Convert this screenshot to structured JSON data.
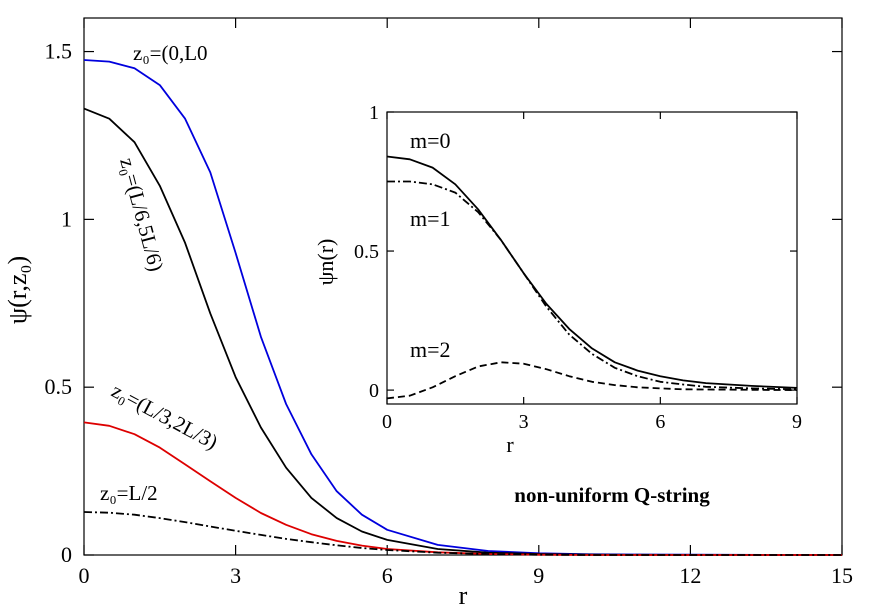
{
  "chart_data": [
    {
      "type": "line",
      "title": "",
      "xlabel": "r",
      "ylabel": "ψ(r,z₀)",
      "xlim": [
        0,
        15
      ],
      "ylim": [
        0,
        1.6
      ],
      "xticks": [
        0,
        3,
        6,
        9,
        12,
        15
      ],
      "xtick_labels": [
        "0",
        "3",
        "6",
        "9",
        "12",
        "15"
      ],
      "yticks": [
        0,
        0.5,
        1,
        1.5
      ],
      "ytick_labels": [
        "0",
        "0.5",
        "1",
        "1.5"
      ],
      "grid": false,
      "annotation": "non-uniform Q-string",
      "series": [
        {
          "label": "z₀=(0,L0",
          "color": "#0000dd",
          "dash": "solid",
          "x": [
            0,
            0.5,
            1,
            1.5,
            2,
            2.5,
            3,
            3.5,
            4,
            4.5,
            5,
            5.5,
            6,
            7,
            8,
            9,
            10,
            12,
            15
          ],
          "y": [
            1.475,
            1.47,
            1.45,
            1.4,
            1.3,
            1.14,
            0.9,
            0.65,
            0.45,
            0.3,
            0.19,
            0.12,
            0.075,
            0.03,
            0.012,
            0.005,
            0.002,
            0.001,
            0
          ]
        },
        {
          "label": "z₀=(L/6,5L/6)",
          "color": "#000000",
          "dash": "solid",
          "x": [
            0,
            0.5,
            1,
            1.5,
            2,
            2.5,
            3,
            3.5,
            4,
            4.5,
            5,
            5.5,
            6,
            7,
            8,
            9,
            10,
            12,
            15
          ],
          "y": [
            1.33,
            1.3,
            1.23,
            1.1,
            0.93,
            0.72,
            0.53,
            0.38,
            0.26,
            0.17,
            0.11,
            0.07,
            0.045,
            0.018,
            0.007,
            0.003,
            0.001,
            0,
            0
          ]
        },
        {
          "label": "z₀=(L/3,2L/3)",
          "color": "#dd0000",
          "dash": "solid",
          "x": [
            0,
            0.5,
            1,
            1.5,
            2,
            2.5,
            3,
            3.5,
            4,
            4.5,
            5,
            5.5,
            6,
            7,
            8,
            9,
            10,
            12,
            15
          ],
          "y": [
            0.395,
            0.385,
            0.36,
            0.32,
            0.27,
            0.22,
            0.17,
            0.125,
            0.09,
            0.062,
            0.042,
            0.028,
            0.018,
            0.008,
            0.003,
            0.001,
            0,
            0,
            0
          ]
        },
        {
          "label": "z₀=L/2",
          "color": "#000000",
          "dash": "dashdot",
          "x": [
            0,
            0.5,
            1,
            1.5,
            2,
            2.5,
            3,
            3.5,
            4,
            4.5,
            5,
            5.5,
            6,
            7,
            8,
            9,
            10,
            12,
            15
          ],
          "y": [
            0.128,
            0.126,
            0.12,
            0.11,
            0.098,
            0.085,
            0.072,
            0.06,
            0.048,
            0.038,
            0.029,
            0.021,
            0.015,
            0.007,
            0.003,
            0.001,
            0,
            0,
            0
          ]
        }
      ]
    },
    {
      "type": "line",
      "title": "",
      "xlabel": "r",
      "ylabel": "ψn(r)",
      "xlim": [
        0,
        9
      ],
      "ylim": [
        -0.05,
        1
      ],
      "xticks": [
        0,
        3,
        6,
        9
      ],
      "xtick_labels": [
        "0",
        "3",
        "6",
        "9"
      ],
      "yticks": [
        0,
        0.5,
        1
      ],
      "ytick_labels": [
        "0",
        "0.5",
        "1"
      ],
      "grid": false,
      "series": [
        {
          "label": "m=0",
          "color": "#000000",
          "dash": "solid",
          "x": [
            0,
            0.5,
            1,
            1.5,
            2,
            2.5,
            3,
            3.5,
            4,
            4.5,
            5,
            5.5,
            6,
            6.5,
            7,
            8,
            9
          ],
          "y": [
            0.84,
            0.83,
            0.8,
            0.74,
            0.65,
            0.54,
            0.42,
            0.31,
            0.22,
            0.15,
            0.1,
            0.07,
            0.05,
            0.035,
            0.025,
            0.015,
            0.008
          ]
        },
        {
          "label": "m=1",
          "color": "#000000",
          "dash": "dashdot",
          "x": [
            0,
            0.5,
            1,
            1.5,
            2,
            2.5,
            3,
            3.5,
            4,
            4.5,
            5,
            5.5,
            6,
            6.5,
            7,
            8,
            9
          ],
          "y": [
            0.75,
            0.75,
            0.74,
            0.71,
            0.64,
            0.54,
            0.42,
            0.3,
            0.2,
            0.13,
            0.08,
            0.05,
            0.03,
            0.02,
            0.012,
            0.006,
            0.003
          ]
        },
        {
          "label": "m=2",
          "color": "#000000",
          "dash": "dashed",
          "x": [
            0,
            0.5,
            1,
            1.5,
            2,
            2.5,
            3,
            3.5,
            4,
            4.5,
            5,
            5.5,
            6,
            6.5,
            7,
            8,
            9
          ],
          "y": [
            -0.03,
            -0.02,
            0.01,
            0.05,
            0.085,
            0.1,
            0.095,
            0.075,
            0.05,
            0.03,
            0.018,
            0.01,
            0.006,
            0.003,
            0.002,
            0.001,
            0
          ]
        }
      ]
    }
  ]
}
